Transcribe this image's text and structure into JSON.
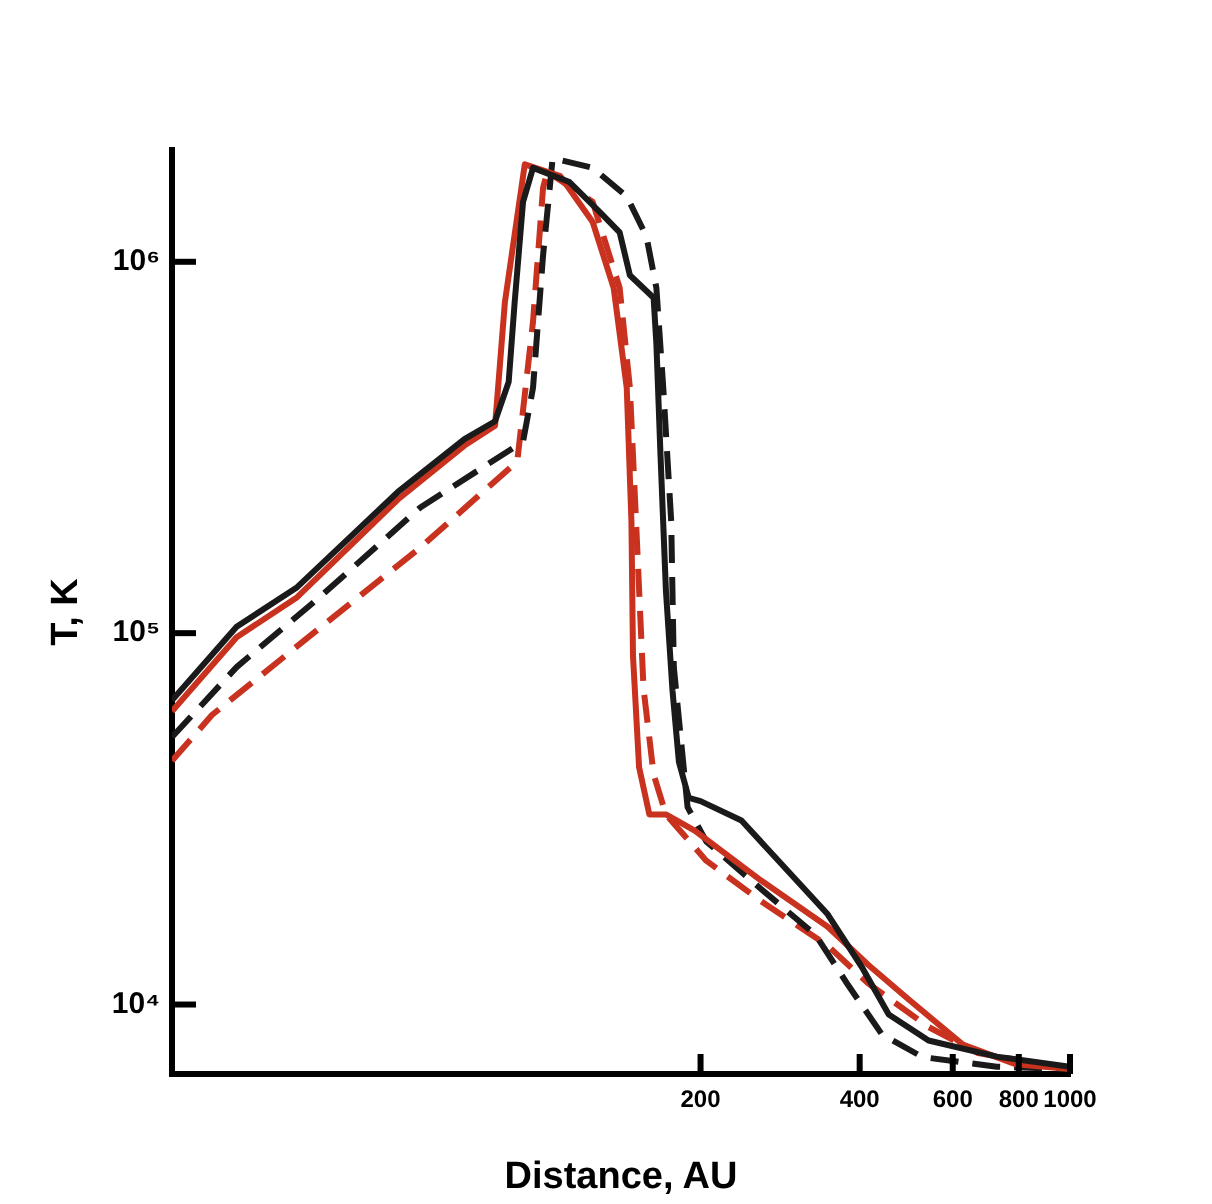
{
  "chart_data": {
    "type": "line",
    "xlabel": "Distance, AU",
    "ylabel": "T, K",
    "log": "xy",
    "grid": false,
    "legend": false,
    "marker": "none",
    "xlim": [
      20,
      1000
    ],
    "xticks": [
      200,
      400,
      600,
      800,
      1000
    ],
    "ylim": [
      6500,
      2000000
    ],
    "yticks": [
      {
        "value": 10000,
        "label": "10⁴"
      },
      {
        "value": 100000,
        "label": "10⁵"
      },
      {
        "value": 1000000,
        "label": "10⁶"
      }
    ],
    "series": [
      {
        "color": "#1a1a1a",
        "line_style": "solid",
        "x": [
          20,
          26.5,
          34.5,
          53.5,
          71.5,
          81.7,
          86.7,
          89,
          92.3,
          96.4,
          113,
          129,
          140.6,
          147,
          163,
          165,
          168,
          172,
          177,
          182,
          190,
          200,
          239,
          348,
          404,
          454,
          540,
          727,
          1000
        ],
        "values": [
          66000,
          104000,
          133000,
          240000,
          333000,
          372000,
          475000,
          780000,
          1450000,
          1790000,
          1640000,
          1360000,
          1200000,
          920000,
          800000,
          600000,
          300000,
          130000,
          70000,
          45000,
          36000,
          35300,
          31300,
          17500,
          12600,
          9400,
          8000,
          7240,
          6800
        ]
      },
      {
        "color": "#c8321e",
        "line_style": "solid",
        "x": [
          20,
          26.5,
          34.5,
          53.5,
          71.5,
          81.7,
          85.3,
          93,
          108.6,
          125,
          137,
          145,
          148,
          149,
          153,
          160,
          172,
          195,
          260,
          348,
          415,
          496,
          627,
          791,
          1000
        ],
        "values": [
          61600,
          97500,
          125000,
          229000,
          320000,
          362000,
          780000,
          1830000,
          1700000,
          1280000,
          850000,
          458000,
          200000,
          87000,
          43600,
          32500,
          32500,
          29400,
          21600,
          16200,
          12800,
          10300,
          7800,
          6900,
          6700
        ]
      },
      {
        "color": "#1a1a1a",
        "line_style": "dashed",
        "x": [
          20,
          26.5,
          38.3,
          59,
          92.3,
          96.4,
          100.7,
          105,
          125,
          145,
          158,
          165,
          170,
          176,
          178,
          189,
          205,
          260,
          330,
          380,
          441,
          526,
          727,
          1000
        ],
        "values": [
          52500,
          81000,
          126000,
          218000,
          328000,
          458000,
          1040000,
          1900000,
          1790000,
          1500000,
          1170000,
          850000,
          458000,
          200000,
          81000,
          34000,
          27500,
          20500,
          15400,
          11300,
          8300,
          7220,
          6800,
          6700
        ]
      },
      {
        "color": "#c8321e",
        "line_style": "dashed",
        "x": [
          20,
          23.8,
          38.3,
          59,
          90,
          96.4,
          100.7,
          102.6,
          125,
          140.6,
          147,
          151,
          156,
          163,
          172,
          205,
          260,
          348,
          415,
          540,
          670,
          1000
        ],
        "values": [
          45300,
          60200,
          104000,
          170000,
          290000,
          690000,
          1580000,
          1750000,
          1450000,
          850000,
          458000,
          200000,
          71000,
          41700,
          32500,
          24400,
          19000,
          14400,
          11400,
          8700,
          7400,
          6700
        ]
      }
    ]
  }
}
